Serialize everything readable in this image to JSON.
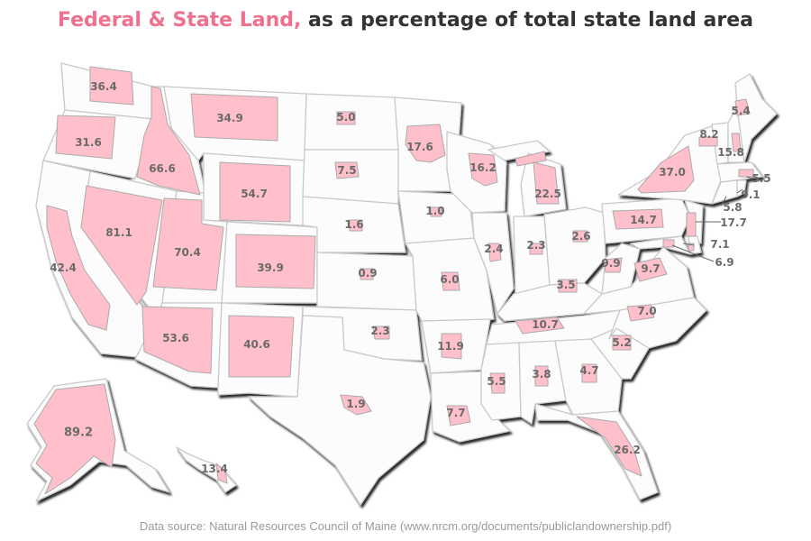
{
  "title": {
    "highlight": "Federal & State Land,",
    "rest": " as a percentage of total state land area"
  },
  "source": "Data source: Natural Resources Council of Maine (www.nrcm.org/documents/publiclandownership.pdf)",
  "colors": {
    "land_fill": "#ffc0cb",
    "state_fill": "#fcfcfc",
    "title_highlight": "#f0718e",
    "title_text": "#333333"
  },
  "states": [
    {
      "name": "Washington",
      "abbr": "WA",
      "value": "36.4"
    },
    {
      "name": "Oregon",
      "abbr": "OR",
      "value": "31.6"
    },
    {
      "name": "California",
      "abbr": "CA",
      "value": "42.4"
    },
    {
      "name": "Idaho",
      "abbr": "ID",
      "value": "66.6"
    },
    {
      "name": "Nevada",
      "abbr": "NV",
      "value": "81.1"
    },
    {
      "name": "Montana",
      "abbr": "MT",
      "value": "34.9"
    },
    {
      "name": "Wyoming",
      "abbr": "WY",
      "value": "54.7"
    },
    {
      "name": "Utah",
      "abbr": "UT",
      "value": "70.4"
    },
    {
      "name": "Arizona",
      "abbr": "AZ",
      "value": "53.6"
    },
    {
      "name": "Colorado",
      "abbr": "CO",
      "value": "39.9"
    },
    {
      "name": "New Mexico",
      "abbr": "NM",
      "value": "40.6"
    },
    {
      "name": "North Dakota",
      "abbr": "ND",
      "value": "5.0"
    },
    {
      "name": "South Dakota",
      "abbr": "SD",
      "value": "7.5"
    },
    {
      "name": "Nebraska",
      "abbr": "NE",
      "value": "1.6"
    },
    {
      "name": "Kansas",
      "abbr": "KS",
      "value": "0.9"
    },
    {
      "name": "Oklahoma",
      "abbr": "OK",
      "value": "2.3"
    },
    {
      "name": "Texas",
      "abbr": "TX",
      "value": "1.9"
    },
    {
      "name": "Minnesota",
      "abbr": "MN",
      "value": "17.6"
    },
    {
      "name": "Iowa",
      "abbr": "IA",
      "value": "1.0"
    },
    {
      "name": "Missouri",
      "abbr": "MO",
      "value": "6.0"
    },
    {
      "name": "Arkansas",
      "abbr": "AR",
      "value": "11.9"
    },
    {
      "name": "Louisiana",
      "abbr": "LA",
      "value": "7.7"
    },
    {
      "name": "Wisconsin",
      "abbr": "WI",
      "value": "16.2"
    },
    {
      "name": "Illinois",
      "abbr": "IL",
      "value": "2.4"
    },
    {
      "name": "Michigan",
      "abbr": "MI",
      "value": "22.5"
    },
    {
      "name": "Indiana",
      "abbr": "IN",
      "value": "2.3"
    },
    {
      "name": "Ohio",
      "abbr": "OH",
      "value": "2.6"
    },
    {
      "name": "Kentucky",
      "abbr": "KY",
      "value": "3.5"
    },
    {
      "name": "Tennessee",
      "abbr": "TN",
      "value": "10.7"
    },
    {
      "name": "Mississippi",
      "abbr": "MS",
      "value": "5.5"
    },
    {
      "name": "Alabama",
      "abbr": "AL",
      "value": "3.8"
    },
    {
      "name": "Georgia",
      "abbr": "GA",
      "value": "4.7"
    },
    {
      "name": "Florida",
      "abbr": "FL",
      "value": "26.2"
    },
    {
      "name": "South Carolina",
      "abbr": "SC",
      "value": "5.2"
    },
    {
      "name": "North Carolina",
      "abbr": "NC",
      "value": "7.0"
    },
    {
      "name": "Virginia",
      "abbr": "VA",
      "value": "9.7"
    },
    {
      "name": "West Virginia",
      "abbr": "WV",
      "value": "9.9"
    },
    {
      "name": "Pennsylvania",
      "abbr": "PA",
      "value": "14.7"
    },
    {
      "name": "New York",
      "abbr": "NY",
      "value": "37.0"
    },
    {
      "name": "Vermont",
      "abbr": "VT",
      "value": "8.2"
    },
    {
      "name": "New Hampshire",
      "abbr": "NH",
      "value": "15.8"
    },
    {
      "name": "Maine",
      "abbr": "ME",
      "value": "5.4"
    },
    {
      "name": "Massachusetts",
      "abbr": "MA",
      "value": "5.5"
    },
    {
      "name": "Rhode Island",
      "abbr": "RI",
      "value": "9.1"
    },
    {
      "name": "Connecticut",
      "abbr": "CT",
      "value": "5.8"
    },
    {
      "name": "New Jersey",
      "abbr": "NJ",
      "value": "17.7"
    },
    {
      "name": "Delaware",
      "abbr": "DE",
      "value": "7.1"
    },
    {
      "name": "Maryland",
      "abbr": "MD",
      "value": "6.9"
    },
    {
      "name": "Alaska",
      "abbr": "AK",
      "value": "89.2"
    },
    {
      "name": "Hawaii",
      "abbr": "HI",
      "value": "13.4"
    }
  ]
}
